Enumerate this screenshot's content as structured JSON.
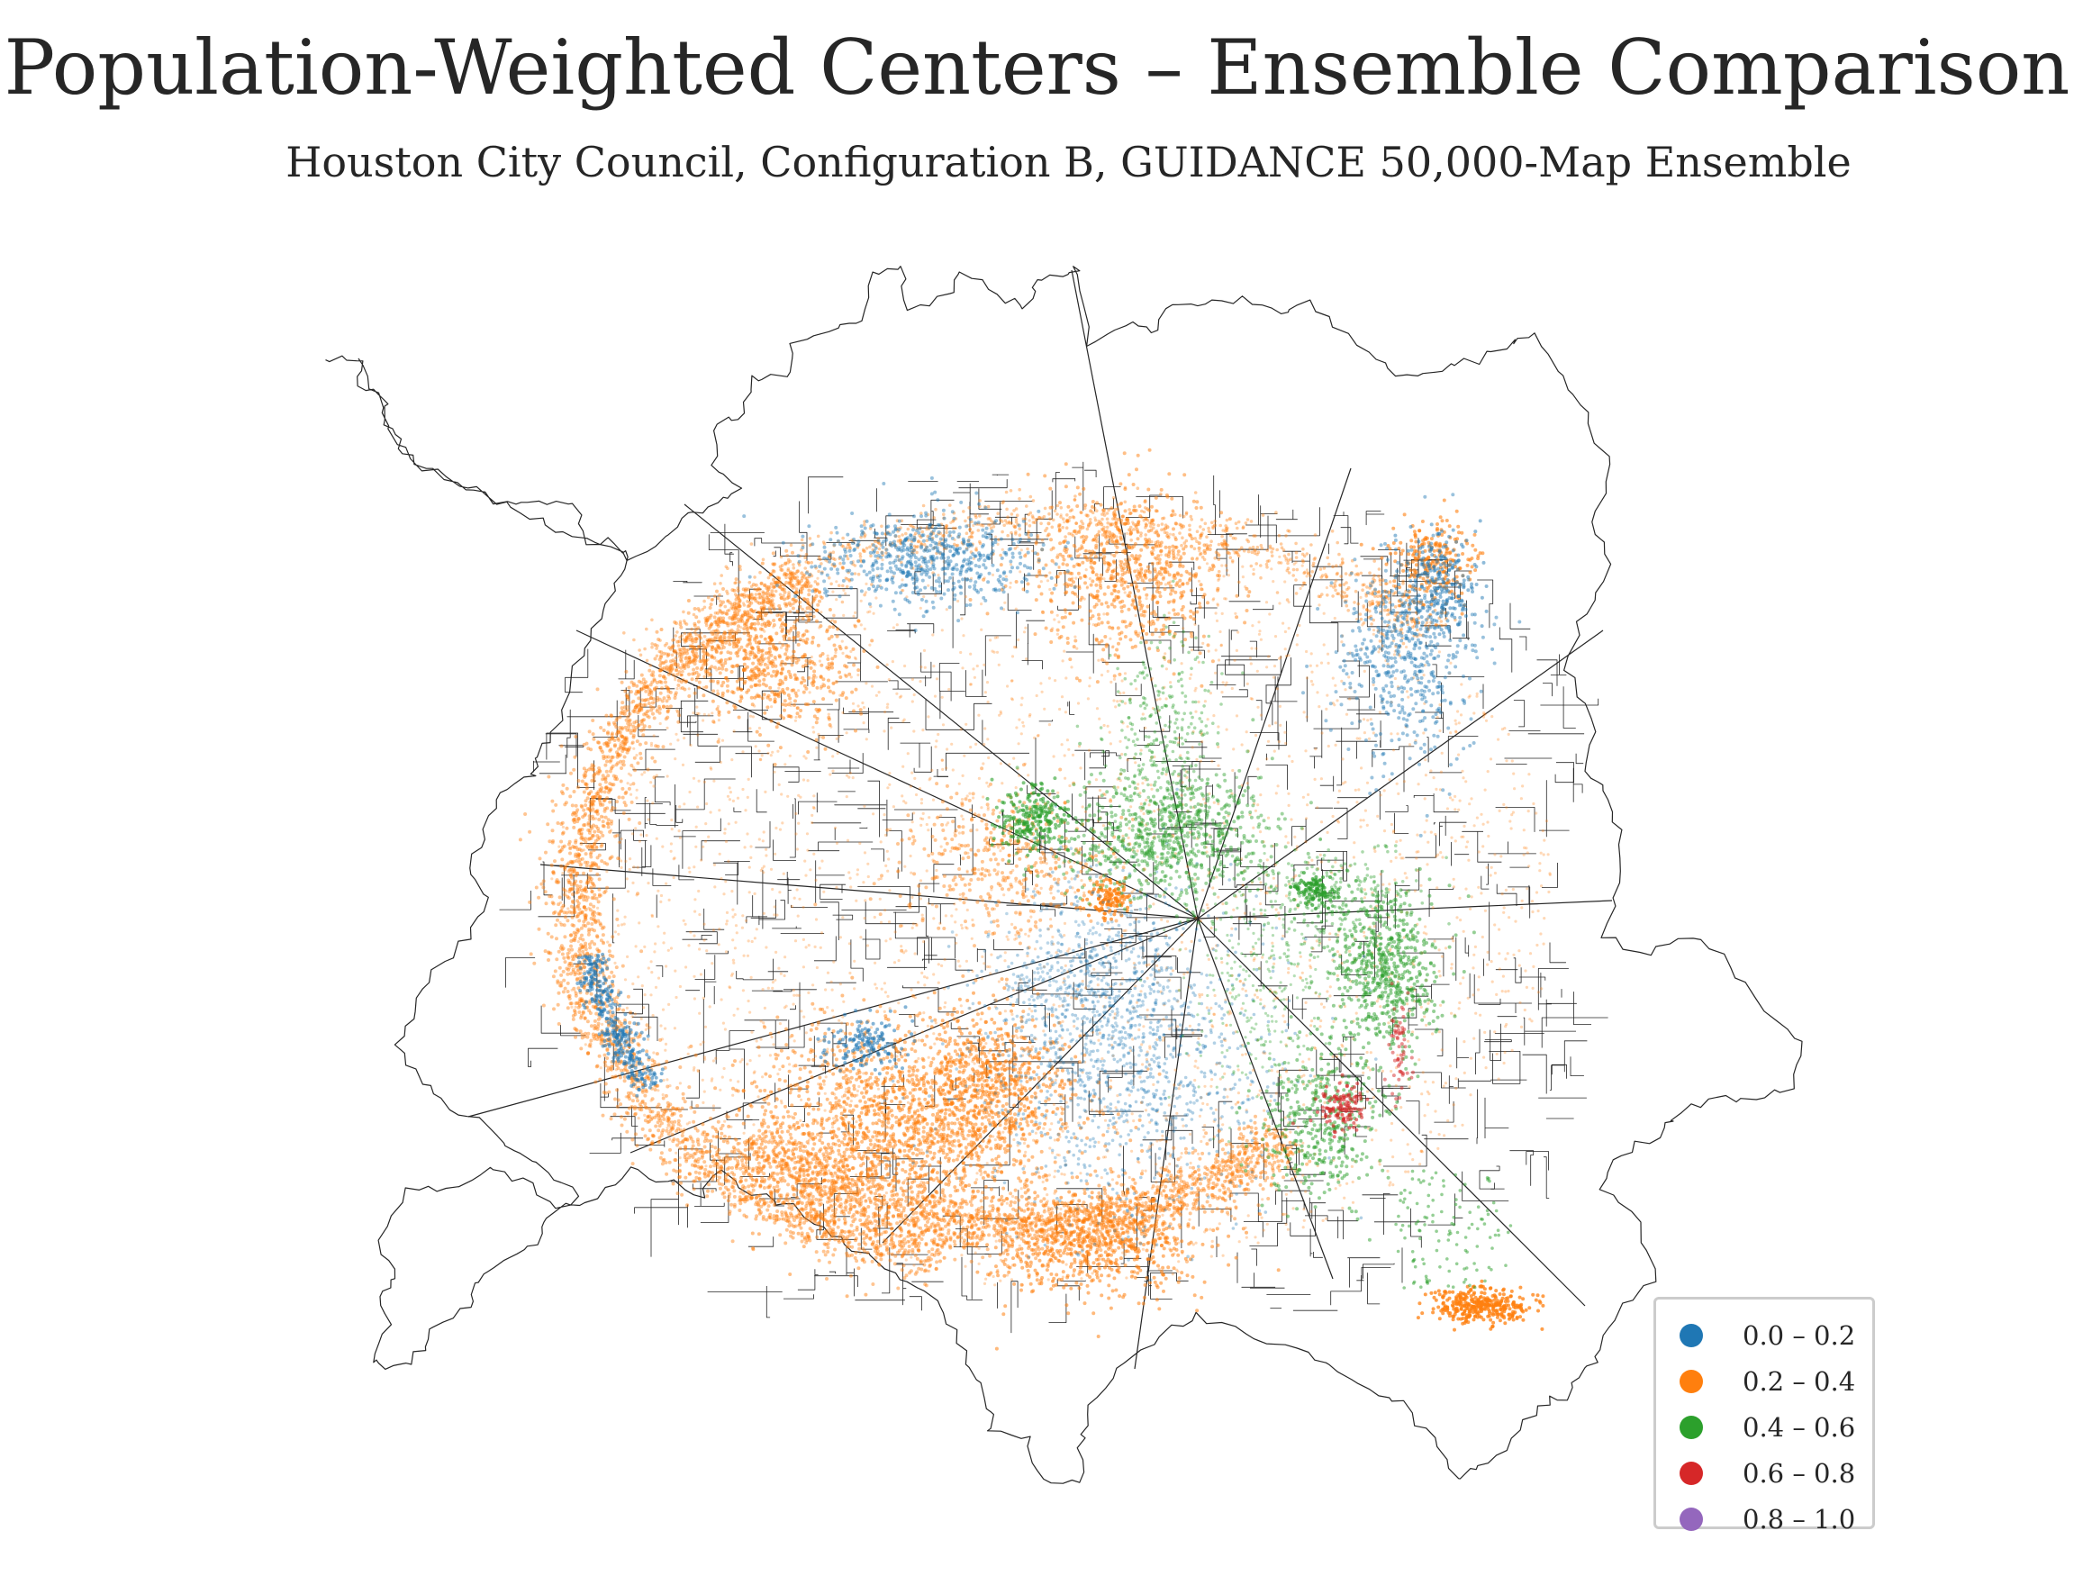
{
  "title": "Population-Weighted Centers – Ensemble Comparison",
  "subtitle": "Houston City Council, Configuration B, GUIDANCE 50,000-Map Ensemble",
  "legend": {
    "entries": [
      {
        "label": "0.0 – 0.2",
        "color": "#1f77b4"
      },
      {
        "label": "0.2 – 0.4",
        "color": "#ff7f0e"
      },
      {
        "label": "0.4 – 0.6",
        "color": "#2ca02c"
      },
      {
        "label": "0.6 – 0.8",
        "color": "#d62728"
      },
      {
        "label": "0.8 – 1.0",
        "color": "#9467bd"
      }
    ]
  },
  "boundary_color": "#262626"
}
